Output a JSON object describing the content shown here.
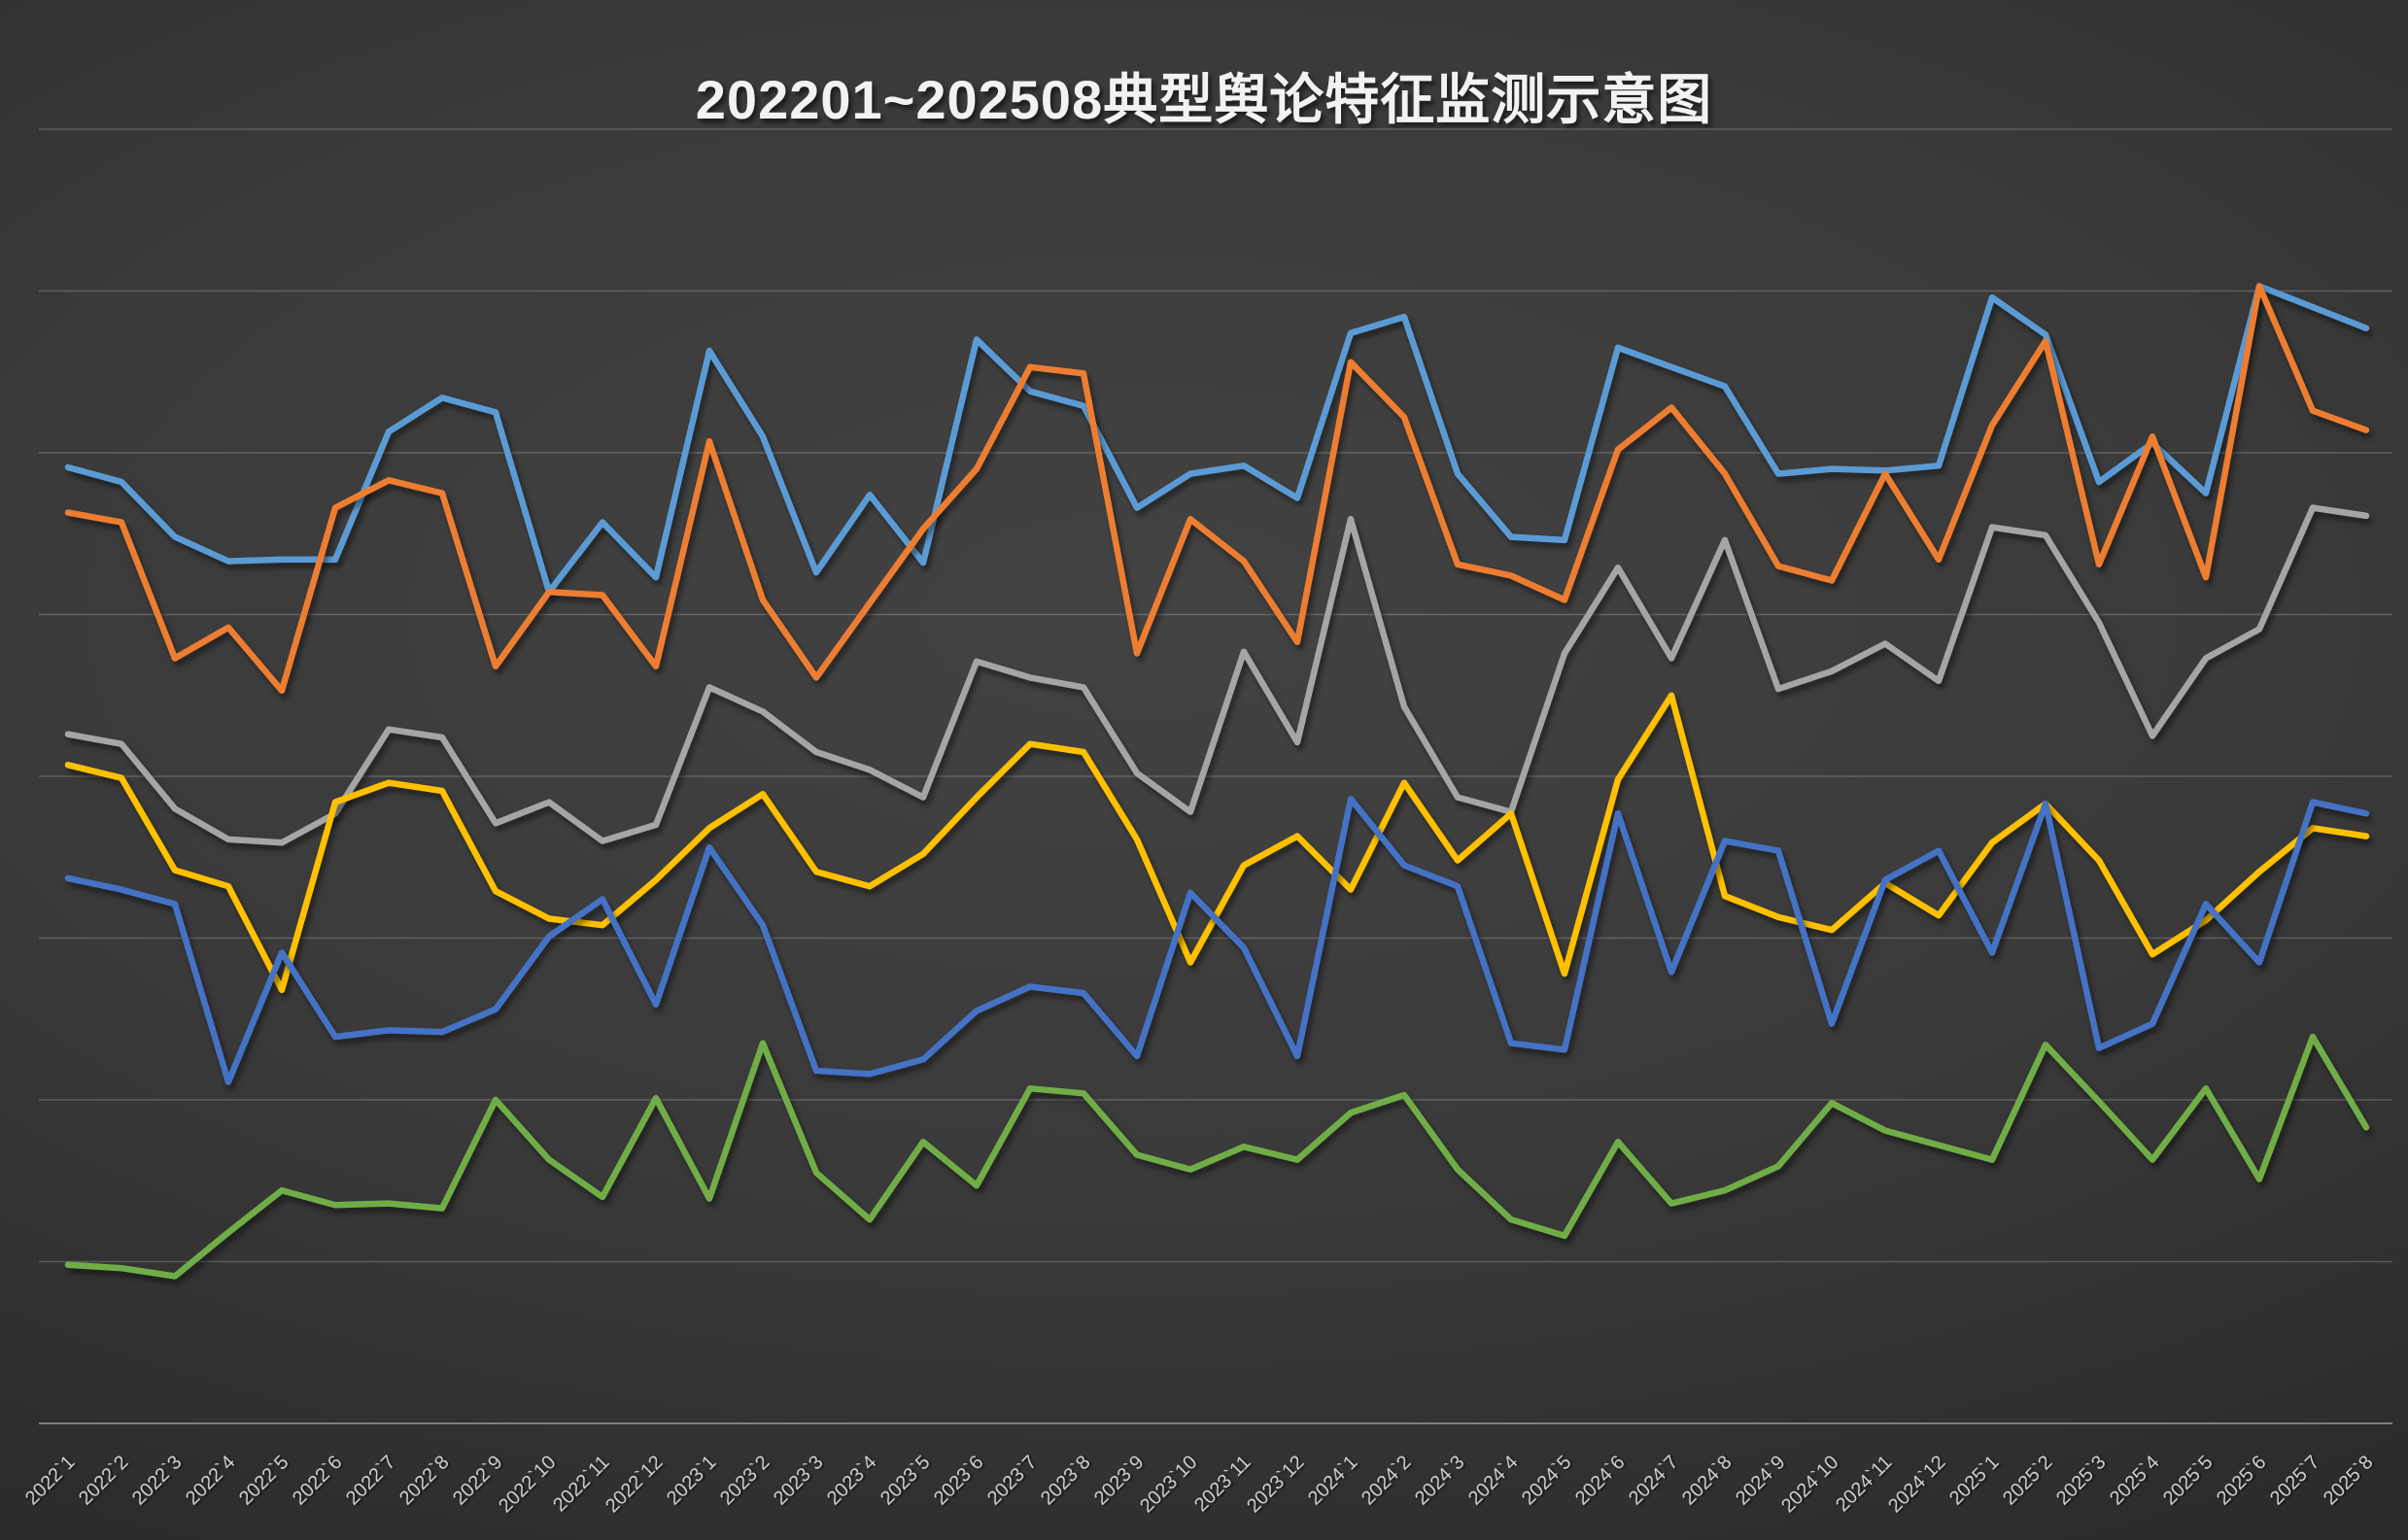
{
  "title": "202201~202508典型舆论特征监测示意图",
  "chart_data": {
    "type": "line",
    "title": "202201~202508典型舆论特征监测示意图",
    "xlabel": "",
    "ylabel": "",
    "legend_position": "none",
    "grid": "horizontal",
    "ylim": [
      0,
      80
    ],
    "gridline_step": 10,
    "x_labels": [
      "2022`1",
      "2022`2",
      "2022`3",
      "2022`4",
      "2022`5",
      "2022`6",
      "2022`7",
      "2022`8",
      "2022`9",
      "2022`10",
      "2022`11",
      "2022`12",
      "2023`1",
      "2023`2",
      "2023`3",
      "2023`4",
      "2023`5",
      "2023`6",
      "2023`7",
      "2023`8",
      "2023`9",
      "2023`10",
      "2023`11",
      "2023`12",
      "2024`1",
      "2024`2",
      "2024`3",
      "2024`4",
      "2024`5",
      "2024`6",
      "2024`7",
      "2024`8",
      "2024`9",
      "2024`10",
      "2024`11",
      "2024`12",
      "2025`1",
      "2025`2",
      "2025`3",
      "2025`4",
      "2025`5",
      "2025`6",
      "2025`7",
      "2025`8"
    ],
    "series": [
      {
        "name": "series-light-blue",
        "color": "#5B9BD5",
        "values": [
          59.1,
          58.2,
          54.8,
          53.3,
          53.4,
          53.4,
          61.3,
          63.4,
          62.5,
          51.4,
          55.7,
          52.3,
          66.3,
          61.0,
          52.6,
          57.4,
          53.2,
          67.0,
          63.8,
          62.9,
          56.6,
          58.7,
          59.2,
          57.2,
          67.4,
          68.4,
          58.7,
          54.8,
          54.6,
          66.5,
          65.3,
          64.1,
          58.7,
          59.0,
          58.9,
          59.2,
          69.6,
          67.3,
          58.2,
          60.6,
          57.5,
          70.3,
          69.0,
          67.7
        ]
      },
      {
        "name": "series-orange",
        "color": "#ED7D31",
        "values": [
          56.3,
          55.7,
          47.3,
          49.2,
          45.3,
          56.6,
          58.3,
          57.5,
          46.8,
          51.4,
          51.2,
          46.8,
          60.7,
          50.9,
          46.1,
          50.7,
          55.3,
          59.0,
          65.3,
          64.9,
          47.6,
          55.9,
          53.3,
          48.3,
          65.6,
          62.2,
          53.1,
          52.4,
          50.9,
          60.2,
          62.8,
          58.7,
          53.0,
          52.1,
          58.7,
          53.4,
          61.7,
          66.9,
          53.1,
          61.0,
          52.3,
          70.3,
          62.6,
          61.4
        ]
      },
      {
        "name": "series-gray",
        "color": "#A5A5A5",
        "values": [
          42.6,
          42.0,
          38.0,
          36.1,
          35.9,
          37.7,
          42.9,
          42.4,
          37.1,
          38.4,
          36.0,
          37.0,
          45.5,
          44.0,
          41.5,
          40.4,
          38.7,
          47.1,
          46.1,
          45.5,
          40.2,
          37.8,
          47.7,
          42.1,
          55.9,
          44.3,
          38.7,
          37.8,
          47.6,
          52.9,
          47.3,
          54.6,
          45.4,
          46.5,
          48.2,
          45.9,
          55.4,
          54.9,
          49.5,
          42.5,
          47.3,
          49.1,
          56.6,
          56.1
        ]
      },
      {
        "name": "series-yellow",
        "color": "#FFC000",
        "values": [
          40.7,
          39.9,
          34.2,
          33.2,
          26.8,
          38.4,
          39.6,
          39.1,
          32.9,
          31.2,
          30.8,
          33.6,
          36.8,
          38.9,
          34.1,
          33.2,
          35.2,
          38.7,
          42.0,
          41.5,
          36.1,
          28.5,
          34.5,
          36.3,
          33.0,
          39.6,
          34.8,
          37.7,
          27.8,
          39.8,
          45.0,
          32.6,
          31.3,
          30.5,
          33.4,
          31.4,
          35.9,
          38.3,
          34.8,
          29.0,
          31.1,
          34.1,
          36.8,
          36.3
        ]
      },
      {
        "name": "series-royal-blue",
        "color": "#4472C4",
        "values": [
          33.7,
          33.0,
          32.1,
          21.1,
          29.1,
          23.9,
          24.3,
          24.2,
          25.6,
          30.1,
          32.4,
          25.9,
          35.6,
          30.8,
          21.8,
          21.6,
          22.5,
          25.5,
          27.0,
          26.6,
          22.7,
          32.8,
          29.4,
          22.7,
          38.6,
          34.5,
          33.2,
          23.5,
          23.1,
          37.7,
          27.9,
          36.0,
          35.4,
          24.7,
          33.6,
          35.4,
          29.1,
          38.3,
          23.2,
          24.7,
          32.1,
          28.5,
          38.4,
          37.7
        ]
      },
      {
        "name": "series-green",
        "color": "#70AD47",
        "values": [
          9.8,
          9.6,
          9.1,
          11.8,
          14.4,
          13.5,
          13.6,
          13.3,
          20.0,
          16.3,
          14.0,
          20.1,
          13.9,
          23.5,
          15.5,
          12.6,
          17.4,
          14.7,
          20.7,
          20.4,
          16.6,
          15.7,
          17.1,
          16.3,
          19.2,
          20.3,
          15.7,
          12.6,
          11.6,
          17.4,
          13.6,
          14.4,
          15.9,
          19.8,
          18.1,
          17.2,
          16.3,
          23.4,
          19.9,
          16.3,
          20.7,
          15.1,
          23.9,
          18.3
        ]
      }
    ]
  }
}
